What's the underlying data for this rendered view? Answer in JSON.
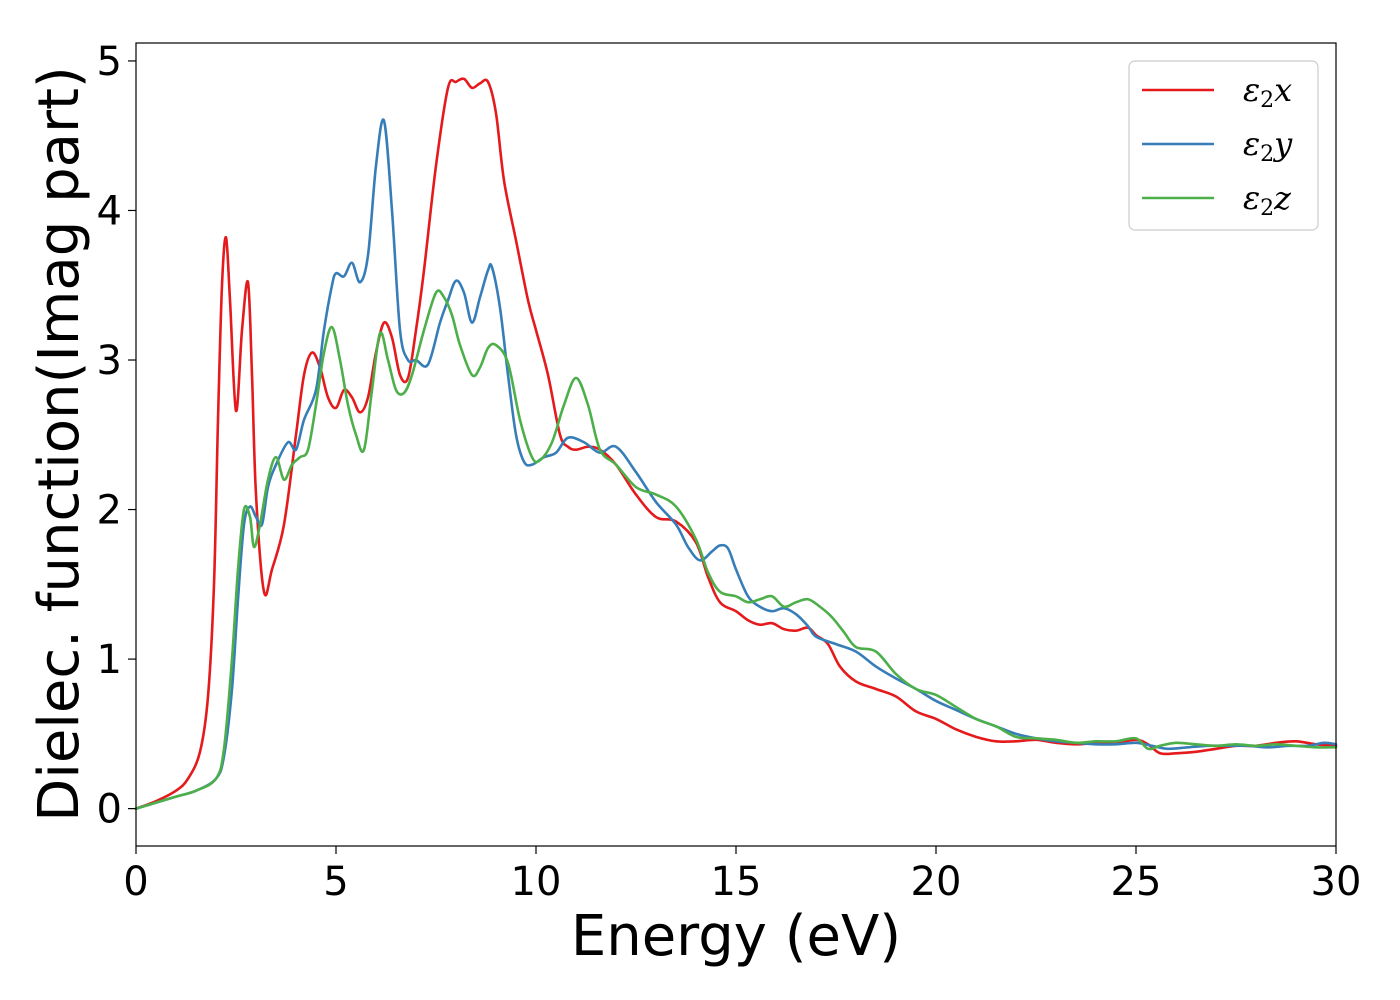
{
  "chart_data": {
    "type": "line",
    "title": "",
    "xlabel": "Energy (eV)",
    "ylabel": "Dielec. function(Imag part)",
    "xlim": [
      0,
      30
    ],
    "ylim": [
      -0.25,
      5.12
    ],
    "xticks": [
      "0",
      "5",
      "10",
      "15",
      "20",
      "25",
      "30"
    ],
    "yticks": [
      "0",
      "1",
      "2",
      "3",
      "4",
      "5"
    ],
    "grid": false,
    "legend_position": "top-right",
    "series": [
      {
        "name": "ε2x",
        "legend_base": "ε",
        "legend_sub": "2",
        "legend_var": "x",
        "color": "#e41a1c",
        "x": [
          0,
          0.5,
          1.0,
          1.3,
          1.6,
          1.8,
          1.95,
          2.05,
          2.15,
          2.25,
          2.35,
          2.5,
          2.65,
          2.8,
          2.9,
          3.0,
          3.2,
          3.4,
          3.7,
          4.0,
          4.2,
          4.4,
          4.6,
          4.8,
          5.0,
          5.2,
          5.4,
          5.6,
          5.8,
          6.0,
          6.2,
          6.4,
          6.6,
          6.8,
          7.0,
          7.2,
          7.5,
          7.8,
          8.0,
          8.2,
          8.4,
          8.6,
          8.8,
          9.0,
          9.2,
          9.5,
          9.8,
          10.0,
          10.3,
          10.6,
          10.8,
          11.0,
          11.3,
          11.6,
          12.0,
          12.5,
          13.0,
          13.5,
          14.0,
          14.3,
          14.6,
          15.0,
          15.3,
          15.6,
          15.9,
          16.2,
          16.5,
          16.8,
          17.0,
          17.3,
          17.6,
          18.0,
          18.5,
          19.0,
          19.5,
          20.0,
          20.5,
          21.0,
          21.5,
          22.0,
          22.5,
          23.0,
          23.5,
          24.0,
          24.5,
          25.0,
          25.3,
          25.6,
          26.0,
          26.5,
          27.0,
          27.5,
          28.0,
          28.5,
          29.0,
          29.5,
          30.0
        ],
        "y": [
          0,
          0.05,
          0.12,
          0.2,
          0.38,
          0.75,
          1.5,
          2.6,
          3.5,
          3.82,
          3.4,
          2.66,
          3.2,
          3.52,
          2.9,
          2.1,
          1.45,
          1.6,
          1.9,
          2.5,
          2.9,
          3.05,
          2.95,
          2.75,
          2.68,
          2.8,
          2.75,
          2.65,
          2.75,
          3.05,
          3.25,
          3.15,
          2.9,
          2.88,
          3.2,
          3.6,
          4.3,
          4.82,
          4.86,
          4.88,
          4.82,
          4.85,
          4.86,
          4.65,
          4.2,
          3.8,
          3.4,
          3.2,
          2.9,
          2.5,
          2.42,
          2.4,
          2.42,
          2.4,
          2.3,
          2.1,
          1.95,
          1.92,
          1.78,
          1.55,
          1.38,
          1.32,
          1.26,
          1.23,
          1.24,
          1.2,
          1.19,
          1.21,
          1.16,
          1.1,
          0.95,
          0.85,
          0.8,
          0.75,
          0.65,
          0.6,
          0.53,
          0.48,
          0.45,
          0.45,
          0.46,
          0.44,
          0.43,
          0.44,
          0.44,
          0.46,
          0.43,
          0.37,
          0.37,
          0.38,
          0.4,
          0.42,
          0.42,
          0.44,
          0.45,
          0.43,
          0.42
        ]
      },
      {
        "name": "ε2y",
        "legend_base": "ε",
        "legend_sub": "2",
        "legend_var": "y",
        "color": "#377eb8",
        "x": [
          0,
          0.5,
          1.0,
          1.5,
          2.0,
          2.2,
          2.4,
          2.55,
          2.7,
          2.85,
          3.0,
          3.15,
          3.3,
          3.5,
          3.8,
          4.0,
          4.2,
          4.5,
          4.7,
          4.9,
          5.0,
          5.2,
          5.4,
          5.6,
          5.8,
          6.0,
          6.2,
          6.4,
          6.6,
          6.8,
          7.0,
          7.3,
          7.6,
          7.8,
          8.0,
          8.2,
          8.4,
          8.6,
          8.8,
          8.9,
          9.1,
          9.3,
          9.5,
          9.7,
          9.9,
          10.2,
          10.5,
          10.8,
          11.2,
          11.6,
          12.0,
          12.5,
          13.0,
          13.5,
          13.8,
          14.1,
          14.4,
          14.6,
          14.8,
          15.0,
          15.3,
          15.6,
          15.9,
          16.2,
          16.5,
          16.8,
          17.0,
          17.5,
          18.0,
          18.5,
          19.0,
          19.5,
          20.0,
          20.5,
          21.0,
          21.5,
          22.0,
          22.5,
          23.0,
          23.5,
          24.0,
          24.5,
          25.0,
          25.4,
          25.8,
          26.3,
          26.8,
          27.3,
          27.8,
          28.3,
          28.8,
          29.3,
          29.7,
          30.0
        ],
        "y": [
          0,
          0.04,
          0.08,
          0.12,
          0.2,
          0.35,
          0.8,
          1.4,
          1.9,
          2.02,
          1.95,
          1.9,
          2.15,
          2.3,
          2.45,
          2.4,
          2.6,
          2.8,
          3.2,
          3.5,
          3.58,
          3.56,
          3.65,
          3.52,
          3.7,
          4.3,
          4.6,
          4.0,
          3.2,
          3.0,
          3.0,
          2.97,
          3.25,
          3.4,
          3.53,
          3.45,
          3.25,
          3.42,
          3.6,
          3.62,
          3.35,
          2.9,
          2.5,
          2.32,
          2.3,
          2.35,
          2.38,
          2.48,
          2.45,
          2.38,
          2.42,
          2.25,
          2.05,
          1.9,
          1.75,
          1.66,
          1.72,
          1.76,
          1.74,
          1.6,
          1.42,
          1.35,
          1.32,
          1.34,
          1.3,
          1.22,
          1.15,
          1.1,
          1.05,
          0.95,
          0.87,
          0.8,
          0.72,
          0.66,
          0.6,
          0.55,
          0.5,
          0.47,
          0.45,
          0.44,
          0.43,
          0.43,
          0.44,
          0.42,
          0.4,
          0.41,
          0.42,
          0.42,
          0.42,
          0.41,
          0.42,
          0.42,
          0.44,
          0.43
        ]
      },
      {
        "name": "ε2z",
        "legend_base": "ε",
        "legend_sub": "2",
        "legend_var": "z",
        "color": "#4daf4a",
        "x": [
          0,
          0.5,
          1.0,
          1.5,
          2.0,
          2.2,
          2.4,
          2.55,
          2.7,
          2.85,
          2.95,
          3.1,
          3.3,
          3.5,
          3.7,
          3.9,
          4.1,
          4.3,
          4.5,
          4.7,
          4.9,
          5.1,
          5.3,
          5.5,
          5.7,
          5.9,
          6.1,
          6.3,
          6.5,
          6.7,
          6.9,
          7.2,
          7.5,
          7.7,
          7.9,
          8.1,
          8.4,
          8.6,
          8.8,
          9.0,
          9.3,
          9.6,
          9.9,
          10.1,
          10.4,
          10.7,
          11.0,
          11.3,
          11.6,
          12.0,
          12.5,
          13.0,
          13.5,
          14.0,
          14.3,
          14.6,
          15.0,
          15.3,
          15.6,
          15.9,
          16.2,
          16.5,
          16.8,
          17.1,
          17.4,
          17.7,
          18.0,
          18.5,
          19.0,
          19.5,
          20.0,
          20.5,
          21.0,
          21.5,
          22.0,
          22.5,
          23.0,
          23.5,
          24.0,
          24.5,
          25.0,
          25.3,
          25.6,
          26.0,
          26.5,
          27.0,
          27.5,
          28.0,
          28.5,
          29.0,
          29.5,
          30.0
        ],
        "y": [
          0,
          0.04,
          0.08,
          0.12,
          0.2,
          0.4,
          1.0,
          1.6,
          2.0,
          1.95,
          1.75,
          1.9,
          2.2,
          2.35,
          2.2,
          2.3,
          2.35,
          2.4,
          2.7,
          3.05,
          3.22,
          3.0,
          2.7,
          2.5,
          2.4,
          2.8,
          3.18,
          3.0,
          2.8,
          2.78,
          2.9,
          3.2,
          3.45,
          3.42,
          3.3,
          3.1,
          2.9,
          2.95,
          3.08,
          3.1,
          2.98,
          2.6,
          2.35,
          2.33,
          2.45,
          2.7,
          2.88,
          2.7,
          2.4,
          2.3,
          2.15,
          2.1,
          2.02,
          1.8,
          1.58,
          1.45,
          1.42,
          1.38,
          1.4,
          1.42,
          1.35,
          1.38,
          1.4,
          1.35,
          1.28,
          1.18,
          1.08,
          1.05,
          0.9,
          0.8,
          0.76,
          0.68,
          0.6,
          0.55,
          0.48,
          0.47,
          0.46,
          0.44,
          0.45,
          0.45,
          0.47,
          0.4,
          0.42,
          0.44,
          0.43,
          0.42,
          0.43,
          0.42,
          0.43,
          0.42,
          0.41,
          0.41
        ]
      }
    ]
  }
}
